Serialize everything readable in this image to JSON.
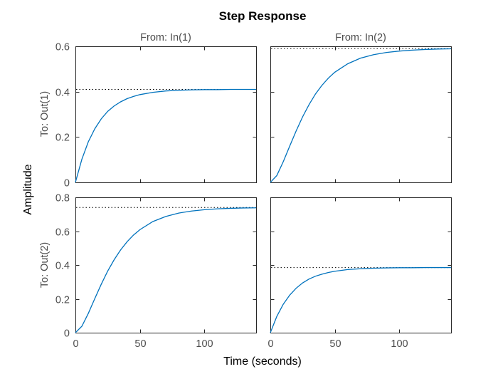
{
  "chart_data": {
    "type": "line",
    "title": "Step Response",
    "xlabel": "Time (seconds)",
    "ylabel": "Amplitude",
    "column_labels": [
      "From: In(1)",
      "From: In(2)"
    ],
    "row_labels": [
      "To: Out(1)",
      "To: Out(2)"
    ],
    "xlim": [
      0,
      140
    ],
    "x_ticks": [
      0,
      50,
      100
    ],
    "x_tick_labels": [
      "0",
      "50",
      "100"
    ],
    "row_ylims": [
      [
        0,
        0.6
      ],
      [
        0,
        0.8
      ]
    ],
    "row_y_ticks": [
      [
        0,
        0.2,
        0.4,
        0.6
      ],
      [
        0,
        0.2,
        0.4,
        0.6,
        0.8
      ]
    ],
    "row_y_tick_labels": [
      [
        "0",
        "0.2",
        "0.4",
        "0.6"
      ],
      [
        "0",
        "0.2",
        "0.4",
        "0.6",
        "0.8"
      ]
    ],
    "line_color": "#0072bd",
    "series": [
      {
        "row": 0,
        "col": 0,
        "final_value": 0.41,
        "x": [
          0,
          5,
          10,
          15,
          20,
          25,
          30,
          35,
          40,
          45,
          50,
          60,
          70,
          80,
          90,
          100,
          110,
          120,
          130,
          140
        ],
        "y": [
          0,
          0.102,
          0.179,
          0.236,
          0.28,
          0.313,
          0.337,
          0.355,
          0.369,
          0.379,
          0.387,
          0.397,
          0.403,
          0.406,
          0.408,
          0.409,
          0.409,
          0.41,
          0.41,
          0.41
        ]
      },
      {
        "row": 0,
        "col": 1,
        "final_value": 0.59,
        "x": [
          0,
          5,
          10,
          15,
          20,
          25,
          30,
          35,
          40,
          45,
          50,
          60,
          70,
          80,
          90,
          100,
          110,
          120,
          130,
          140
        ],
        "y": [
          0,
          0.03,
          0.091,
          0.16,
          0.227,
          0.289,
          0.343,
          0.39,
          0.428,
          0.46,
          0.486,
          0.523,
          0.548,
          0.563,
          0.573,
          0.579,
          0.583,
          0.586,
          0.588,
          0.589
        ]
      },
      {
        "row": 1,
        "col": 0,
        "final_value": 0.74,
        "x": [
          0,
          5,
          10,
          15,
          20,
          25,
          30,
          35,
          40,
          45,
          50,
          60,
          70,
          80,
          90,
          100,
          110,
          120,
          130,
          140
        ],
        "y": [
          0,
          0.038,
          0.114,
          0.201,
          0.286,
          0.364,
          0.431,
          0.489,
          0.537,
          0.577,
          0.609,
          0.657,
          0.687,
          0.707,
          0.719,
          0.727,
          0.732,
          0.735,
          0.737,
          0.738
        ]
      },
      {
        "row": 1,
        "col": 1,
        "final_value": 0.385,
        "x": [
          0,
          5,
          10,
          15,
          20,
          25,
          30,
          35,
          40,
          45,
          50,
          60,
          70,
          80,
          90,
          100,
          110,
          120,
          130,
          140
        ],
        "y": [
          0,
          0.096,
          0.168,
          0.222,
          0.263,
          0.294,
          0.317,
          0.334,
          0.346,
          0.356,
          0.363,
          0.373,
          0.378,
          0.381,
          0.383,
          0.384,
          0.384,
          0.385,
          0.385,
          0.385
        ]
      }
    ]
  }
}
